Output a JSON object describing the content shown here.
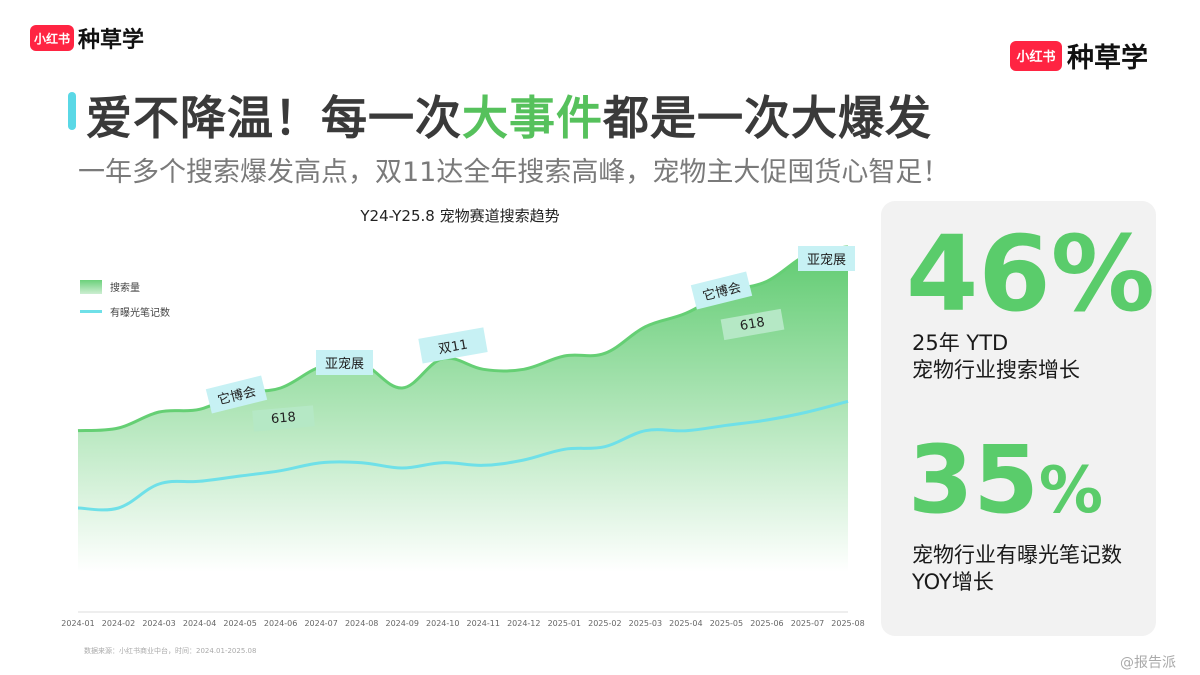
{
  "logos": {
    "badge": "小红书",
    "text": "种草学"
  },
  "title": {
    "pre": "爱不降温！每一次",
    "highlight": "大事件",
    "post": "都是一次大爆发"
  },
  "subtitle": "一年多个搜索爆发高点，双11达全年搜索高峰，宠物主大促囤货心智足！",
  "legend": {
    "area": "搜索量",
    "line": "有曝光笔记数"
  },
  "annotations": {
    "tabo1": "它博会",
    "m618a": "618",
    "ycz1": "亚宠展",
    "d11": "双11",
    "tabo2": "它博会",
    "m618b": "618",
    "ycz2": "亚宠展"
  },
  "source": "数据来源：小红书商业中台，时间：2024.01-2025.08",
  "stats": {
    "s1": {
      "value": "46%",
      "line1": "25年 YTD",
      "line2": "宠物行业搜索增长"
    },
    "s2": {
      "value": "35",
      "pct": "%",
      "line1": "宠物行业有曝光笔记数",
      "line2": "YOY增长"
    }
  },
  "watermark": "@报告派",
  "colors": {
    "area": "#6cd17b",
    "line": "#6fe0e8",
    "accent": "#56c15c",
    "brand": "#ff2442"
  },
  "chart_data": {
    "type": "area",
    "title": "Y24-Y25.8 宠物赛道搜索趋势",
    "x": [
      "2024-01",
      "2024-02",
      "2024-03",
      "2024-04",
      "2024-05",
      "2024-06",
      "2024-07",
      "2024-08",
      "2024-09",
      "2024-10",
      "2024-11",
      "2024-12",
      "2025-01",
      "2025-02",
      "2025-03",
      "2025-04",
      "2025-05",
      "2025-06",
      "2025-07",
      "2025-08"
    ],
    "series": [
      {
        "name": "搜索量",
        "type": "area",
        "values": [
          68,
          69,
          75,
          76,
          82,
          84,
          92,
          93,
          84,
          95,
          91,
          91,
          96,
          97,
          107,
          112,
          120,
          124,
          134,
          137
        ]
      },
      {
        "name": "有曝光笔记数",
        "type": "line",
        "values": [
          39,
          39,
          48,
          49,
          51,
          53,
          56,
          56,
          54,
          56,
          55,
          57,
          61,
          62,
          68,
          68,
          70,
          72,
          75,
          79
        ]
      }
    ],
    "ylim": [
      0,
      150
    ],
    "grid": false,
    "legend": "top-left"
  }
}
